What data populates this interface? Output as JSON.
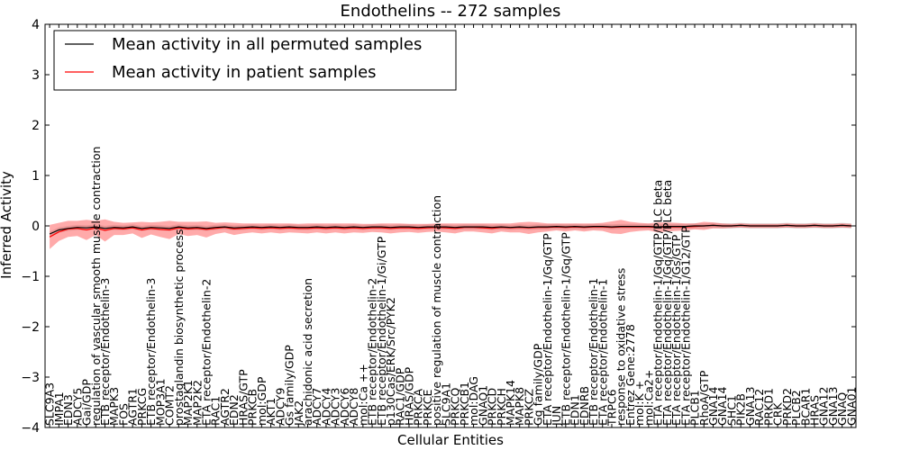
{
  "chart_data": {
    "type": "line",
    "title": "Endothelins -- 272 samples",
    "xlabel": "Cellular Entities",
    "ylabel": "Inferred Activity",
    "ylim": [
      -4,
      4
    ],
    "yticks": [
      -4,
      -3,
      -2,
      -1,
      0,
      1,
      2,
      3,
      4
    ],
    "legend_position": "top-left",
    "categories": [
      "SLC9A3",
      "IMPA1",
      "EDN3",
      "ADCY5",
      "Gai/GDP",
      "regulation of vascular smooth muscle contraction",
      "ETB receptor/Endothelin-3",
      "MAPK3",
      "FOS",
      "AGTR1",
      "PRKCG",
      "ETB receptor/Endothelin-3",
      "MOP3A1",
      "COMT2",
      "prostaglandin biosynthetic process",
      "MAP2K1",
      "MAP2K2",
      "ETA receptor/Endothelin-2",
      "RAC1",
      "AGTR2",
      "EDN2",
      "HRAS/GTP",
      "PRKCB",
      "mol:GDP",
      "AKT1",
      "ADCY9",
      "Gs family/GDP",
      "JAK2",
      "arachidonic acid secretion",
      "ADCY7",
      "ADCY4",
      "ADCY3",
      "ADCY6",
      "ADCY8",
      "mol:Ca ++",
      "ETB receptor/Endothelin-2",
      "ETB receptor/Endothelin-1/Gi/GTP",
      "p130Cas/ERK/Src/PYK2",
      "RAC1/GDP",
      "HRAS/GDP",
      "PRKCA",
      "PRKCE",
      "positive regulation of muscle contraction",
      "SLC9A1",
      "PRKCQ",
      "PRKCB1",
      "mol:DAG",
      "GNAQ1",
      "PRKCD",
      "PRKCH",
      "MAPK14",
      "MAPK8",
      "PRKCZ",
      "Gq family/GDP",
      "ETA receptor/Endothelin-1/Gq/GTP",
      "JUN",
      "ETB receptor/Endothelin-1/Gq/GTP",
      "EDN1",
      "EDNRB",
      "ETB receptor/Endothelin-1",
      "ETA receptor/Endothelin-1",
      "TRPC6",
      "response to oxidative stress",
      "Entrez Gene:2778",
      "mol:K +",
      "mol:Ca2+",
      "ETA receptor/Endothelin-1/Gq/GTP/PLC beta",
      "ETA receptor/Endothelin-1/Gq/GTP/PLC beta",
      "ETA receptor/Endothelin-1/Gs/GTP",
      "ETA receptor/Endothelin-1/G12/GTP",
      "PLCB1",
      "RhoA/GTP",
      "GNA14",
      "GNA14",
      "SHC1",
      "PIK2B",
      "GNA13",
      "RAC12",
      "PRKD1",
      "CRK",
      "PRKD2",
      "PLCB2",
      "BCAR1",
      "HRAS",
      "GNA12",
      "GNA13",
      "GNAQ",
      "GNA01"
    ],
    "series": [
      {
        "name": "Mean activity in all permuted samples",
        "color": "#000000",
        "values": [
          -0.16,
          -0.08,
          -0.05,
          -0.03,
          -0.04,
          -0.02,
          -0.05,
          -0.03,
          -0.04,
          -0.02,
          -0.05,
          -0.03,
          -0.04,
          -0.05,
          -0.02,
          -0.04,
          -0.03,
          -0.05,
          -0.03,
          -0.02,
          -0.04,
          -0.03,
          -0.02,
          -0.03,
          -0.02,
          -0.03,
          -0.02,
          -0.03,
          -0.03,
          -0.02,
          -0.03,
          -0.02,
          -0.03,
          -0.02,
          -0.03,
          -0.02,
          -0.02,
          -0.03,
          -0.02,
          -0.02,
          -0.03,
          -0.02,
          -0.02,
          -0.02,
          -0.03,
          -0.02,
          -0.02,
          -0.02,
          -0.03,
          -0.02,
          -0.03,
          -0.02,
          -0.03,
          -0.02,
          -0.02,
          -0.01,
          -0.02,
          -0.01,
          -0.02,
          -0.01,
          -0.01,
          -0.02,
          -0.01,
          -0.01,
          -0.01,
          -0.01,
          -0.02,
          -0.01,
          -0.01,
          -0.01,
          0.0,
          0.0,
          0.01,
          0.0,
          0.0,
          0.01,
          0.0,
          0.0,
          0.0,
          0.0,
          0.01,
          0.0,
          0.0,
          0.01,
          0.0,
          0.0,
          0.01,
          0.0
        ]
      },
      {
        "name": "Mean activity in patient samples",
        "color": "#ff0000",
        "band_color": "#ff5555",
        "values": [
          -0.22,
          -0.12,
          -0.06,
          -0.05,
          -0.08,
          -0.04,
          -0.09,
          -0.05,
          -0.06,
          -0.04,
          -0.08,
          -0.05,
          -0.07,
          -0.08,
          -0.04,
          -0.06,
          -0.05,
          -0.07,
          -0.05,
          -0.03,
          -0.06,
          -0.05,
          -0.04,
          -0.05,
          -0.04,
          -0.05,
          -0.04,
          -0.05,
          -0.05,
          -0.04,
          -0.05,
          -0.04,
          -0.05,
          -0.04,
          -0.05,
          -0.04,
          -0.04,
          -0.05,
          -0.04,
          -0.04,
          -0.05,
          -0.04,
          -0.03,
          -0.04,
          -0.05,
          -0.03,
          -0.03,
          -0.04,
          -0.05,
          -0.03,
          -0.04,
          -0.03,
          -0.04,
          -0.03,
          -0.03,
          -0.02,
          -0.03,
          -0.02,
          -0.03,
          -0.02,
          -0.02,
          -0.03,
          -0.02,
          -0.02,
          -0.02,
          -0.02,
          -0.03,
          -0.02,
          -0.02,
          -0.02,
          -0.01,
          0.0,
          0.01,
          0.0,
          0.0,
          0.01,
          0.0,
          0.0,
          0.0,
          0.0,
          0.01,
          0.0,
          0.0,
          0.01,
          0.0,
          0.0,
          0.01,
          0.0
        ],
        "band_halfwidth": [
          0.24,
          0.18,
          0.16,
          0.15,
          0.2,
          0.14,
          0.22,
          0.13,
          0.12,
          0.11,
          0.16,
          0.12,
          0.15,
          0.18,
          0.12,
          0.14,
          0.13,
          0.16,
          0.11,
          0.1,
          0.12,
          0.1,
          0.09,
          0.1,
          0.09,
          0.1,
          0.09,
          0.09,
          0.1,
          0.09,
          0.1,
          0.09,
          0.1,
          0.09,
          0.09,
          0.08,
          0.09,
          0.1,
          0.09,
          0.08,
          0.09,
          0.08,
          0.08,
          0.09,
          0.1,
          0.08,
          0.08,
          0.09,
          0.1,
          0.08,
          0.09,
          0.1,
          0.12,
          0.1,
          0.08,
          0.07,
          0.08,
          0.07,
          0.08,
          0.07,
          0.08,
          0.12,
          0.14,
          0.1,
          0.08,
          0.07,
          0.1,
          0.09,
          0.08,
          0.07,
          0.06,
          0.08,
          0.06,
          0.05,
          0.04,
          0.04,
          0.04,
          0.04,
          0.04,
          0.04,
          0.04,
          0.04,
          0.04,
          0.04,
          0.04,
          0.04,
          0.04,
          0.04
        ]
      }
    ]
  }
}
